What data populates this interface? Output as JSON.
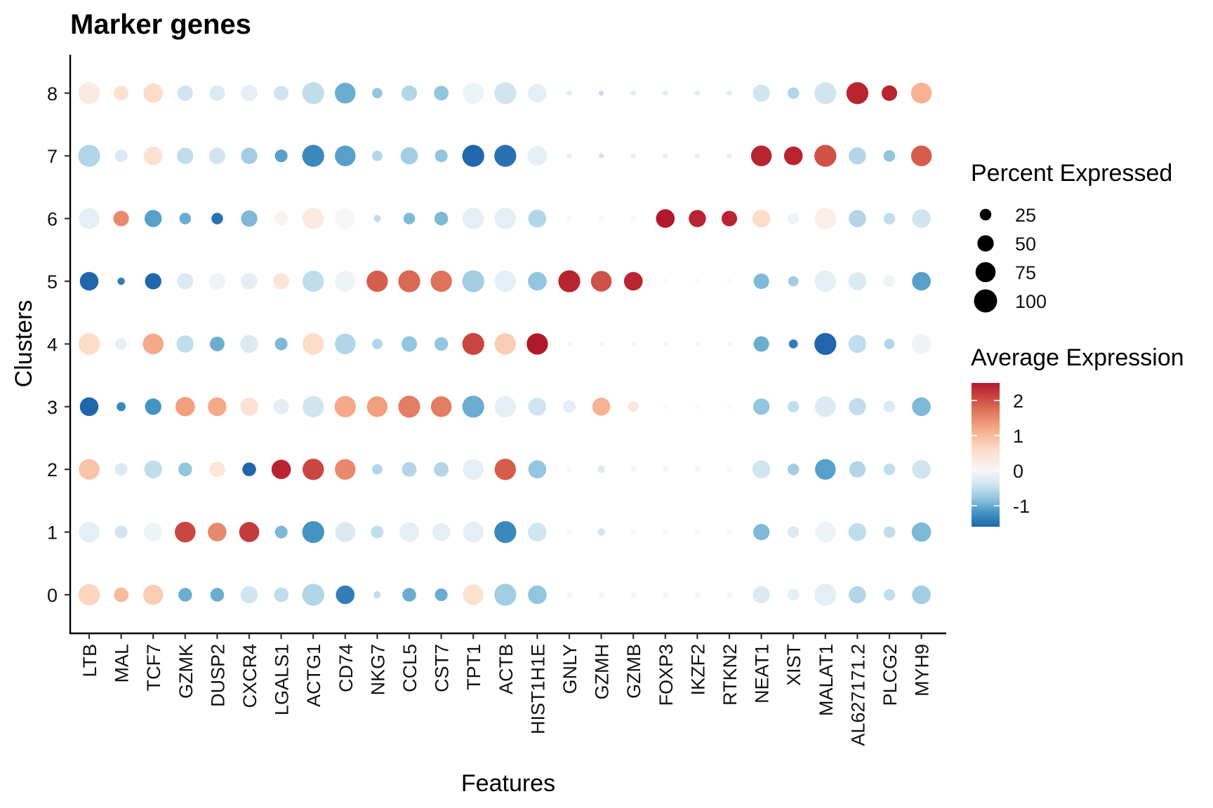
{
  "chart_data": {
    "type": "dot",
    "title": "Marker genes",
    "xlabel": "Features",
    "ylabel": "Clusters",
    "features": [
      "LTB",
      "MAL",
      "TCF7",
      "GZMK",
      "DUSP2",
      "CXCR4",
      "LGALS1",
      "ACTG1",
      "CD74",
      "NKG7",
      "CCL5",
      "CST7",
      "TPT1",
      "ACTB",
      "HIST1H1E",
      "GNLY",
      "GZMH",
      "GZMB",
      "FOXP3",
      "IKZF2",
      "RTKN2",
      "NEAT1",
      "XIST",
      "MALAT1",
      "AL627171.2",
      "PLCG2",
      "MYH9"
    ],
    "clusters": [
      "0",
      "1",
      "2",
      "3",
      "4",
      "5",
      "6",
      "7",
      "8"
    ],
    "size_legend": {
      "title": "Percent Expressed",
      "breaks": [
        25,
        50,
        75,
        100
      ],
      "labels": [
        "25",
        "50",
        "75",
        "100"
      ]
    },
    "color_legend": {
      "title": "Average Expression",
      "limits": [
        -1.6,
        2.5
      ],
      "breaks": [
        -1,
        0,
        1,
        2
      ],
      "labels": [
        "-1",
        "0",
        "1",
        "2"
      ],
      "colors": [
        "#2166AC",
        "#4393C3",
        "#92C5DE",
        "#D1E5F0",
        "#F7F7F7",
        "#FDDBC7",
        "#F4A582",
        "#D6604D",
        "#B2182B"
      ]
    },
    "grid": false,
    "legend_position": "right",
    "series": [
      {
        "cluster": "0",
        "pct": [
          85,
          40,
          75,
          35,
          35,
          55,
          40,
          90,
          65,
          10,
          35,
          30,
          80,
          90,
          65,
          5,
          5,
          5,
          5,
          5,
          5,
          55,
          25,
          90,
          55,
          25,
          65
        ],
        "avg": [
          0.7,
          1.0,
          0.8,
          -1.0,
          -1.0,
          -0.4,
          -0.5,
          -0.6,
          -1.4,
          -0.5,
          -1.0,
          -1.0,
          0.5,
          -0.7,
          -0.8,
          0,
          0,
          0,
          0,
          0,
          0,
          -0.3,
          -0.2,
          -0.2,
          -0.6,
          -0.5,
          -0.7
        ]
      },
      {
        "cluster": "1",
        "pct": [
          80,
          30,
          65,
          80,
          65,
          75,
          30,
          90,
          75,
          30,
          70,
          60,
          80,
          90,
          65,
          5,
          10,
          5,
          5,
          5,
          5,
          50,
          25,
          80,
          60,
          25,
          70
        ],
        "avg": [
          -0.2,
          -0.4,
          -0.1,
          2.1,
          1.5,
          2.2,
          -0.9,
          -1.2,
          -0.3,
          -0.5,
          -0.2,
          -0.2,
          -0.2,
          -1.3,
          -0.4,
          0,
          -0.4,
          0,
          0,
          0,
          0,
          -0.9,
          -0.3,
          -0.1,
          -0.5,
          -0.5,
          -0.9
        ]
      },
      {
        "cluster": "2",
        "pct": [
          80,
          30,
          60,
          35,
          45,
          35,
          70,
          85,
          80,
          20,
          40,
          40,
          80,
          85,
          60,
          5,
          10,
          5,
          5,
          5,
          5,
          60,
          25,
          80,
          50,
          25,
          65
        ],
        "avg": [
          0.9,
          -0.3,
          -0.5,
          -0.8,
          0.4,
          -1.6,
          2.4,
          2.1,
          1.5,
          -0.6,
          -0.6,
          -0.6,
          -0.2,
          1.9,
          -0.8,
          0,
          -0.3,
          0,
          0,
          0,
          0,
          -0.4,
          -0.7,
          -1.1,
          -0.6,
          -0.5,
          -0.4
        ]
      },
      {
        "cluster": "3",
        "pct": [
          65,
          15,
          50,
          70,
          65,
          60,
          45,
          85,
          85,
          80,
          90,
          80,
          90,
          85,
          60,
          30,
          60,
          20,
          5,
          5,
          5,
          50,
          25,
          80,
          55,
          25,
          65
        ],
        "avg": [
          -1.6,
          -1.3,
          -1.2,
          1.3,
          1.2,
          0.5,
          -0.2,
          -0.4,
          1.2,
          1.3,
          1.6,
          1.6,
          -1.0,
          -0.2,
          -0.4,
          -0.2,
          1.1,
          0.4,
          0,
          0,
          0,
          -0.8,
          -0.5,
          -0.3,
          -0.5,
          -0.3,
          -0.9
        ]
      },
      {
        "cluster": "4",
        "pct": [
          85,
          25,
          80,
          55,
          40,
          60,
          30,
          85,
          80,
          20,
          45,
          35,
          90,
          85,
          85,
          5,
          5,
          5,
          5,
          5,
          5,
          45,
          15,
          90,
          60,
          20,
          70
        ],
        "avg": [
          0.6,
          -0.2,
          1.2,
          -0.5,
          -1.0,
          -0.3,
          -0.9,
          0.6,
          -0.6,
          -0.6,
          -0.8,
          -0.8,
          2.1,
          0.8,
          2.5,
          0,
          0,
          0,
          0,
          0,
          0,
          -1.0,
          -1.4,
          -1.6,
          -0.5,
          -0.6,
          -0.1
        ]
      },
      {
        "cluster": "5",
        "pct": [
          65,
          10,
          50,
          50,
          50,
          50,
          50,
          85,
          80,
          85,
          90,
          85,
          90,
          85,
          65,
          90,
          80,
          65,
          5,
          5,
          5,
          45,
          20,
          85,
          60,
          25,
          65
        ],
        "avg": [
          -1.6,
          -1.4,
          -1.6,
          -0.3,
          -0.1,
          -0.2,
          0.4,
          -0.5,
          -0.1,
          1.9,
          1.8,
          1.7,
          -0.7,
          -0.2,
          -0.8,
          2.4,
          2.0,
          2.4,
          0,
          0,
          0,
          -0.9,
          -0.7,
          -0.2,
          -0.3,
          -0.1,
          -1.1
        ]
      },
      {
        "cluster": "6",
        "pct": [
          80,
          45,
          55,
          25,
          25,
          50,
          35,
          85,
          80,
          10,
          25,
          35,
          85,
          85,
          60,
          5,
          5,
          5,
          65,
          55,
          45,
          60,
          25,
          85,
          55,
          25,
          65
        ],
        "avg": [
          -0.2,
          1.5,
          -1.1,
          -1.0,
          -1.5,
          -0.9,
          0.1,
          0.3,
          0.0,
          -0.5,
          -0.9,
          -0.9,
          -0.2,
          -0.2,
          -0.6,
          0,
          0,
          0,
          2.5,
          2.4,
          2.4,
          0.6,
          -0.1,
          0.2,
          -0.6,
          -0.5,
          -0.4
        ]
      },
      {
        "cluster": "7",
        "pct": [
          90,
          30,
          65,
          50,
          50,
          50,
          30,
          90,
          80,
          20,
          55,
          30,
          90,
          90,
          70,
          5,
          5,
          5,
          5,
          5,
          5,
          80,
          65,
          90,
          55,
          25,
          80
        ],
        "avg": [
          -0.6,
          -0.3,
          0.5,
          -0.5,
          -0.4,
          -0.7,
          -1.1,
          -1.3,
          -1.1,
          -0.6,
          -0.7,
          -0.8,
          -1.6,
          -1.5,
          -0.2,
          -0.2,
          -0.4,
          -0.2,
          -0.2,
          -0.2,
          -0.2,
          2.4,
          2.4,
          2.0,
          -0.6,
          -0.8,
          1.9
        ]
      },
      {
        "cluster": "8",
        "pct": [
          85,
          40,
          70,
          45,
          45,
          50,
          40,
          90,
          80,
          20,
          45,
          40,
          85,
          90,
          65,
          5,
          5,
          5,
          5,
          5,
          5,
          55,
          25,
          90,
          90,
          45,
          80
        ],
        "avg": [
          0.3,
          0.5,
          0.6,
          -0.4,
          -0.3,
          -0.2,
          -0.4,
          -0.5,
          -1.0,
          -0.8,
          -0.6,
          -0.8,
          -0.1,
          -0.4,
          -0.2,
          -0.3,
          -0.5,
          -0.3,
          -0.3,
          -0.3,
          -0.3,
          -0.4,
          -0.6,
          -0.4,
          2.4,
          2.4,
          1.1
        ]
      }
    ]
  }
}
